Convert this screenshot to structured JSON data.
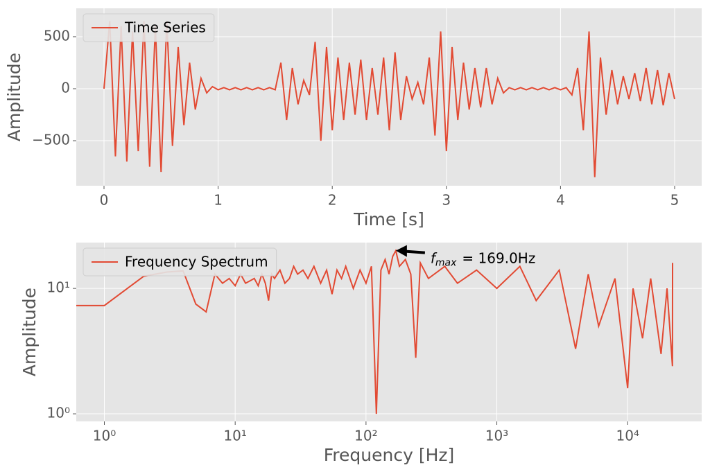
{
  "chart_data": [
    {
      "type": "line",
      "xlabel": "Time [s]",
      "ylabel": "Amplitude",
      "x": [
        0,
        0.05,
        0.1,
        0.15,
        0.2,
        0.25,
        0.3,
        0.35,
        0.4,
        0.45,
        0.5,
        0.55,
        0.6,
        0.65,
        0.7,
        0.75,
        0.8,
        0.85,
        0.9,
        0.95,
        1.0,
        1.05,
        1.1,
        1.15,
        1.2,
        1.25,
        1.3,
        1.35,
        1.4,
        1.45,
        1.5,
        1.55,
        1.6,
        1.65,
        1.7,
        1.75,
        1.8,
        1.85,
        1.9,
        1.95,
        2.0,
        2.05,
        2.1,
        2.15,
        2.2,
        2.25,
        2.3,
        2.35,
        2.4,
        2.45,
        2.5,
        2.55,
        2.6,
        2.65,
        2.7,
        2.75,
        2.8,
        2.85,
        2.9,
        2.95,
        3.0,
        3.05,
        3.1,
        3.15,
        3.2,
        3.25,
        3.3,
        3.35,
        3.4,
        3.45,
        3.5,
        3.55,
        3.6,
        3.65,
        3.7,
        3.75,
        3.8,
        3.85,
        3.9,
        3.95,
        4.0,
        4.05,
        4.1,
        4.15,
        4.2,
        4.25,
        4.3,
        4.35,
        4.4,
        4.45,
        4.5,
        4.55,
        4.6,
        4.65,
        4.7,
        4.75,
        4.8,
        4.85,
        4.9,
        4.95,
        5.0
      ],
      "series": [
        {
          "name": "Time Series",
          "color": "#e24a33",
          "values": [
            0,
            650,
            -650,
            600,
            -700,
            550,
            -600,
            650,
            -750,
            600,
            -800,
            650,
            -550,
            400,
            -350,
            250,
            -200,
            100,
            -40,
            20,
            -10,
            10,
            -10,
            10,
            -10,
            10,
            -10,
            10,
            -10,
            10,
            -10,
            250,
            -300,
            200,
            -150,
            80,
            -60,
            450,
            -500,
            400,
            -400,
            300,
            -300,
            250,
            -250,
            280,
            -300,
            200,
            -250,
            300,
            -400,
            350,
            -300,
            120,
            -100,
            60,
            -150,
            300,
            -450,
            550,
            -600,
            400,
            -300,
            250,
            -200,
            200,
            -180,
            200,
            -150,
            100,
            -40,
            10,
            -10,
            10,
            -10,
            10,
            -10,
            10,
            -10,
            10,
            -10,
            10,
            -60,
            200,
            -400,
            550,
            -850,
            300,
            -250,
            180,
            -150,
            120,
            -100,
            150,
            -120,
            200,
            -150,
            180,
            -160,
            150,
            -100
          ]
        }
      ],
      "xlim": [
        -0.243,
        5.237
      ],
      "ylim": [
        -933,
        773
      ],
      "xticks": [
        0,
        1,
        2,
        3,
        4,
        5
      ],
      "yticks": [
        {
          "value": -500,
          "label": "−500"
        },
        0,
        500
      ],
      "grid": true,
      "legend": "upper left"
    },
    {
      "type": "line",
      "xlabel": "Frequency [Hz]",
      "ylabel": "Amplitude",
      "x": [
        0.6,
        1,
        2,
        3,
        4,
        5,
        6,
        7,
        8,
        9,
        10,
        11,
        12,
        13,
        14,
        15,
        16,
        17,
        18,
        19,
        20,
        22,
        24,
        26,
        28,
        30,
        33,
        36,
        40,
        45,
        50,
        55,
        60,
        65,
        70,
        80,
        90,
        100,
        110,
        120,
        130,
        140,
        150,
        160,
        169,
        180,
        200,
        220,
        240,
        260,
        300,
        400,
        500,
        700,
        1000,
        1500,
        2000,
        3000,
        4000,
        5000,
        6000,
        8000,
        10000,
        11000,
        13000,
        15000,
        18000,
        20000,
        22000,
        22050
      ],
      "series": [
        {
          "name": "Frequency Spectrum",
          "color": "#e24a33",
          "values": [
            7.3,
            7.3,
            12.5,
            13.5,
            13.8,
            7.5,
            6.5,
            13,
            11,
            12,
            10.5,
            13,
            11,
            11.5,
            12,
            10.5,
            13,
            11,
            8,
            13,
            12,
            14,
            11,
            12,
            15,
            13,
            14,
            12,
            15,
            11,
            14,
            9,
            14,
            12,
            15,
            10,
            14,
            11,
            15,
            1.0,
            14,
            17,
            13,
            18,
            20,
            15,
            17,
            13,
            2.8,
            16,
            12,
            15,
            11,
            14,
            10,
            15,
            8,
            14,
            3.3,
            13,
            5,
            12,
            1.6,
            10,
            4,
            12,
            3,
            10,
            2.4,
            16
          ]
        }
      ],
      "xscale": "log",
      "yscale": "log",
      "xlim": [
        0.61,
        36800
      ],
      "ylim": [
        0.87,
        23.2
      ],
      "xticks": [
        {
          "value": 1,
          "label": "10⁰"
        },
        {
          "value": 10,
          "label": "10¹"
        },
        {
          "value": 100,
          "label": "10²"
        },
        {
          "value": 1000,
          "label": "10³"
        },
        {
          "value": 10000,
          "label": "10⁴"
        }
      ],
      "yticks": [
        {
          "value": 1,
          "label": "10⁰"
        },
        {
          "value": 10,
          "label": "10¹"
        }
      ],
      "grid": true,
      "legend": "upper left",
      "annotation": {
        "symbol": "f",
        "subscript": "max",
        "text": "= 169.0Hz",
        "x": 169,
        "y": 20
      }
    }
  ]
}
